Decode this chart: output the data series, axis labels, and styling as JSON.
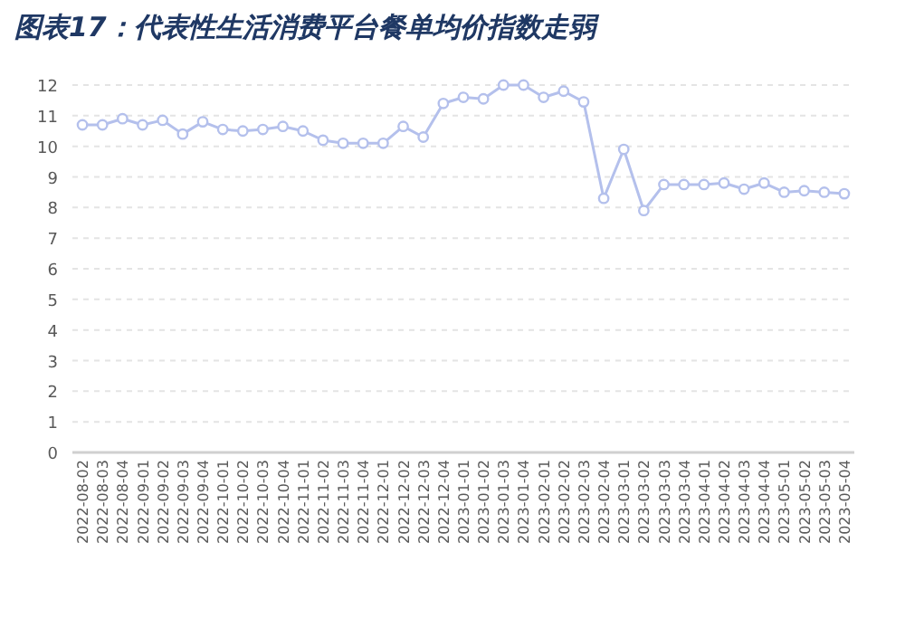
{
  "chart_data": {
    "type": "line",
    "title": "图表17：代表性生活消费平台餐单均价指数走弱",
    "categories": [
      "2022-08-02",
      "2022-08-03",
      "2022-08-04",
      "2022-09-01",
      "2022-09-02",
      "2022-09-03",
      "2022-09-04",
      "2022-10-01",
      "2022-10-02",
      "2022-10-03",
      "2022-10-04",
      "2022-11-01",
      "2022-11-02",
      "2022-11-03",
      "2022-11-04",
      "2022-12-01",
      "2022-12-02",
      "2022-12-03",
      "2022-12-04",
      "2023-01-01",
      "2023-01-02",
      "2023-01-03",
      "2023-01-04",
      "2023-02-01",
      "2023-02-02",
      "2023-02-03",
      "2023-02-04",
      "2023-03-01",
      "2023-03-02",
      "2023-03-03",
      "2023-03-04",
      "2023-04-01",
      "2023-04-02",
      "2023-04-03",
      "2023-04-04",
      "2023-05-01",
      "2023-05-02",
      "2023-05-03",
      "2023-05-04"
    ],
    "values": [
      10.7,
      10.7,
      10.9,
      10.7,
      10.85,
      10.4,
      10.8,
      10.55,
      10.5,
      10.55,
      10.65,
      10.5,
      10.2,
      10.1,
      10.1,
      10.1,
      10.65,
      10.3,
      11.4,
      11.6,
      11.55,
      12.0,
      12.0,
      11.6,
      11.8,
      11.45,
      8.3,
      9.9,
      7.9,
      8.75,
      8.75,
      8.75,
      8.8,
      8.6,
      8.8,
      8.5,
      8.55,
      8.5,
      8.45
    ],
    "color": "#b4c0ec",
    "ylim": [
      0,
      12
    ],
    "yticks": [
      0,
      1,
      2,
      3,
      4,
      5,
      6,
      7,
      8,
      9,
      10,
      11,
      12
    ],
    "grid": "y",
    "marker": "circle",
    "line_style": "solid"
  }
}
